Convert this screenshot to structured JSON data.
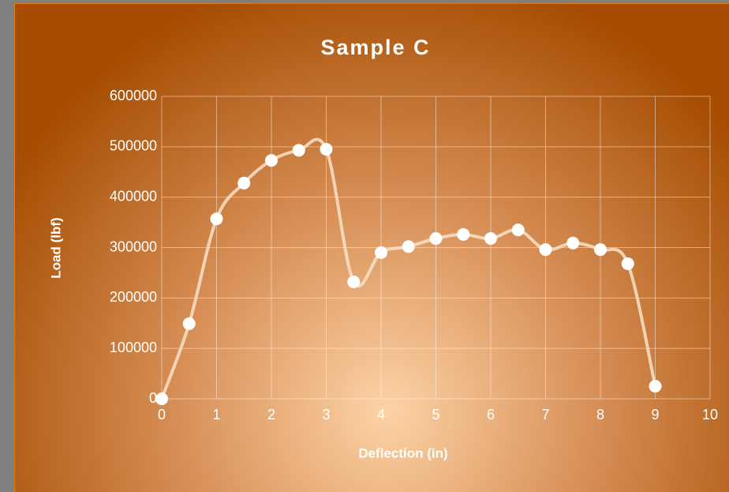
{
  "chart_data": {
    "type": "scatter",
    "title": "Sample C",
    "x_label": "Deflection (in)",
    "y_label": "Load (lbf)",
    "x": [
      0,
      0.5,
      1,
      1.5,
      2,
      2.5,
      3,
      3.5,
      4,
      4.5,
      5,
      5.5,
      6,
      6.5,
      7,
      7.5,
      8,
      8.5,
      9
    ],
    "values": [
      0,
      149000,
      357000,
      428000,
      473000,
      493000,
      495000,
      232000,
      290000,
      302000,
      318000,
      326000,
      318000,
      335000,
      296000,
      309000,
      296000,
      268000,
      25000
    ],
    "xlim": [
      0,
      10
    ],
    "xticks": [
      0,
      1,
      2,
      3,
      4,
      5,
      6,
      7,
      8,
      9,
      10
    ],
    "ylim": [
      0,
      600000
    ],
    "yticks": [
      0,
      100000,
      200000,
      300000,
      400000,
      500000,
      600000
    ],
    "grid": true,
    "smooth": true,
    "color": "#ffffff",
    "line_color": "#f8e2c8"
  }
}
